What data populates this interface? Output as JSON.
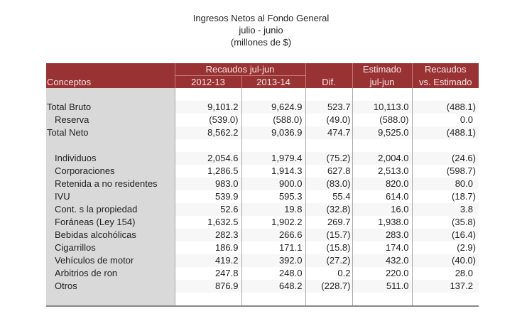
{
  "title": {
    "line1": "Ingresos Netos al Fondo General",
    "line2": "julio - junio",
    "line3": "(millones de $)"
  },
  "header": {
    "concepts": "Conceptos",
    "recaudos_group": "Recaudos jul-jun",
    "year1": "2012-13",
    "year2": "2013-14",
    "dif": "Dif.",
    "estimado_line1": "Estimado",
    "estimado_line2": "jul-jun",
    "vs_line1": "Recaudos",
    "vs_line2": "vs. Estimado"
  },
  "colors": {
    "header_bg": "#993333",
    "header_text": "#f6e4e4",
    "concept_bg": "#d9d9d9"
  },
  "rows": [
    {
      "concept": "Total Bruto",
      "y1": "9,101.2",
      "y2": "9,624.9",
      "dif": "523.7",
      "est": "10,113.0",
      "vs": "(488.1)"
    },
    {
      "concept": "Reserva",
      "y1": "(539.0)",
      "y2": "(588.0)",
      "dif": "(49.0)",
      "est": "(588.0)",
      "vs": "0.0"
    },
    {
      "concept": "Total Neto",
      "y1": "8,562.2",
      "y2": "9,036.9",
      "dif": "474.7",
      "est": "9,525.0",
      "vs": "(488.1)"
    },
    {
      "concept": "Individuos",
      "y1": "2,054.6",
      "y2": "1,979.4",
      "dif": "(75.2)",
      "est": "2,004.0",
      "vs": "(24.6)"
    },
    {
      "concept": "Corporaciones",
      "y1": "1,286.5",
      "y2": "1,914.3",
      "dif": "627.8",
      "est": "2,513.0",
      "vs": "(598.7)"
    },
    {
      "concept": "Retenida a no residentes",
      "y1": "983.0",
      "y2": "900.0",
      "dif": "(83.0)",
      "est": "820.0",
      "vs": "80.0"
    },
    {
      "concept": "IVU",
      "y1": "539.9",
      "y2": "595.3",
      "dif": "55.4",
      "est": "614.0",
      "vs": "(18.7)"
    },
    {
      "concept": "Cont. s la propiedad",
      "y1": "52.6",
      "y2": "19.8",
      "dif": "(32.8)",
      "est": "16.0",
      "vs": "3.8"
    },
    {
      "concept": "Foráneas (Ley 154)",
      "y1": "1,632.5",
      "y2": "1,902.2",
      "dif": "269.7",
      "est": "1,938.0",
      "vs": "(35.8)"
    },
    {
      "concept": "Bebidas alcohólicas",
      "y1": "282.3",
      "y2": "266.6",
      "dif": "(15.7)",
      "est": "283.0",
      "vs": "(16.4)"
    },
    {
      "concept": "Cigarrillos",
      "y1": "186.9",
      "y2": "171.1",
      "dif": "(15.8)",
      "est": "174.0",
      "vs": "(2.9)"
    },
    {
      "concept": "Vehículos de motor",
      "y1": "419.2",
      "y2": "392.0",
      "dif": "(27.2)",
      "est": "432.0",
      "vs": "(40.0)"
    },
    {
      "concept": "Arbitrios de ron",
      "y1": "247.8",
      "y2": "248.0",
      "dif": "0.2",
      "est": "220.0",
      "vs": "28.0"
    },
    {
      "concept": "Otros",
      "y1": "876.9",
      "y2": "648.2",
      "dif": "(228.7)",
      "est": "511.0",
      "vs": "137.2"
    }
  ]
}
